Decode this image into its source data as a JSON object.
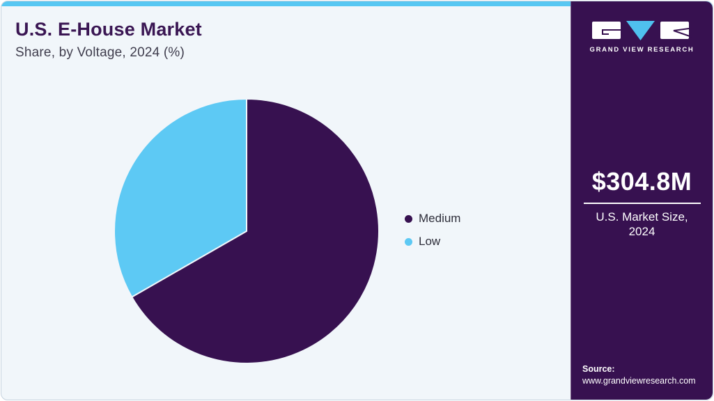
{
  "header": {
    "title": "U.S. E-House Market",
    "subtitle": "Share, by Voltage, 2024 (%)"
  },
  "chart_data": {
    "type": "pie",
    "title": "U.S. E-House Market Share, by Voltage, 2024 (%)",
    "labels": [
      "Medium",
      "Low"
    ],
    "values": [
      66.7,
      33.3
    ],
    "unit": "%",
    "colors": [
      "#371150",
      "#5dc9f4"
    ],
    "legend_position": "right",
    "start_angle_deg": 0,
    "direction": "clockwise"
  },
  "sidebar": {
    "logo_text": "GRAND VIEW RESEARCH",
    "market_size": "$304.8M",
    "market_caption": "U.S. Market Size, 2024",
    "source_label": "Source:",
    "source_url": "www.grandviewresearch.com",
    "background_color": "#371150",
    "accent_color": "#57c7f2"
  }
}
